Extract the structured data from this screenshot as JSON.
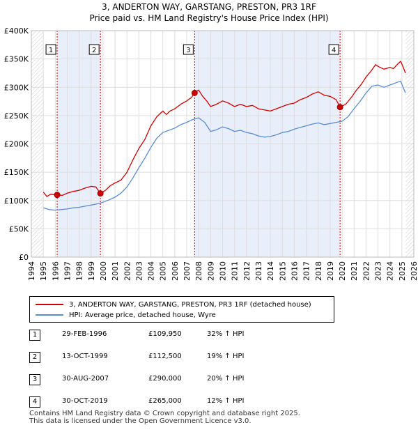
{
  "title_line1": "3, ANDERTON WAY, GARSTANG, PRESTON, PR3 1RF",
  "title_line2": "Price paid vs. HM Land Registry's House Price Index (HPI)",
  "chart_data": {
    "type": "line",
    "xlim": [
      1994,
      2026
    ],
    "ylim": [
      0,
      400000
    ],
    "x_ticks": [
      1994,
      1995,
      1996,
      1997,
      1998,
      1999,
      2000,
      2001,
      2002,
      2003,
      2004,
      2005,
      2006,
      2007,
      2008,
      2009,
      2010,
      2011,
      2012,
      2013,
      2014,
      2015,
      2016,
      2017,
      2018,
      2019,
      2020,
      2021,
      2022,
      2023,
      2024,
      2025,
      2026
    ],
    "y_ticks": [
      {
        "value": 0,
        "label": "£0"
      },
      {
        "value": 50000,
        "label": "£50K"
      },
      {
        "value": 100000,
        "label": "£100K"
      },
      {
        "value": 150000,
        "label": "£150K"
      },
      {
        "value": 200000,
        "label": "£200K"
      },
      {
        "value": 250000,
        "label": "£250K"
      },
      {
        "value": 300000,
        "label": "£300K"
      },
      {
        "value": 350000,
        "label": "£350K"
      },
      {
        "value": 400000,
        "label": "£400K"
      }
    ],
    "grid": true,
    "hatch_ranges": [
      [
        1994,
        1995.0
      ],
      [
        2025.3,
        2026
      ]
    ],
    "shade_ranges": [
      [
        1996.16,
        1999.78
      ],
      [
        2007.66,
        2019.83
      ]
    ],
    "series": [
      {
        "name": "3, ANDERTON WAY, GARSTANG, PRESTON, PR3 1RF (detached house)",
        "color": "#cc0000",
        "points": [
          [
            1995.0,
            115000
          ],
          [
            1995.3,
            107000
          ],
          [
            1995.6,
            111000
          ],
          [
            1996.16,
            109950
          ],
          [
            1996.6,
            109000
          ],
          [
            1997.0,
            113000
          ],
          [
            1997.5,
            116000
          ],
          [
            1998.0,
            118000
          ],
          [
            1998.5,
            122000
          ],
          [
            1999.0,
            125000
          ],
          [
            1999.4,
            124000
          ],
          [
            1999.78,
            112500
          ],
          [
            2000.2,
            118000
          ],
          [
            2000.6,
            126000
          ],
          [
            2001.0,
            131000
          ],
          [
            2001.5,
            136000
          ],
          [
            2002.0,
            150000
          ],
          [
            2002.5,
            172000
          ],
          [
            2003.0,
            192000
          ],
          [
            2003.5,
            208000
          ],
          [
            2004.0,
            232000
          ],
          [
            2004.5,
            248000
          ],
          [
            2005.0,
            258000
          ],
          [
            2005.3,
            252000
          ],
          [
            2005.6,
            258000
          ],
          [
            2006.0,
            262000
          ],
          [
            2006.5,
            270000
          ],
          [
            2007.0,
            276000
          ],
          [
            2007.4,
            282000
          ],
          [
            2007.66,
            290000
          ],
          [
            2008.0,
            295000
          ],
          [
            2008.3,
            285000
          ],
          [
            2008.7,
            275000
          ],
          [
            2009.0,
            266000
          ],
          [
            2009.5,
            270000
          ],
          [
            2010.0,
            276000
          ],
          [
            2010.5,
            272000
          ],
          [
            2011.0,
            266000
          ],
          [
            2011.5,
            270000
          ],
          [
            2012.0,
            266000
          ],
          [
            2012.5,
            268000
          ],
          [
            2013.0,
            262000
          ],
          [
            2013.5,
            260000
          ],
          [
            2014.0,
            258000
          ],
          [
            2014.5,
            262000
          ],
          [
            2015.0,
            266000
          ],
          [
            2015.5,
            270000
          ],
          [
            2016.0,
            272000
          ],
          [
            2016.5,
            278000
          ],
          [
            2017.0,
            282000
          ],
          [
            2017.5,
            288000
          ],
          [
            2018.0,
            292000
          ],
          [
            2018.5,
            286000
          ],
          [
            2019.0,
            284000
          ],
          [
            2019.5,
            278000
          ],
          [
            2019.83,
            265000
          ],
          [
            2020.3,
            270000
          ],
          [
            2020.8,
            283000
          ],
          [
            2021.2,
            295000
          ],
          [
            2021.6,
            305000
          ],
          [
            2022.0,
            318000
          ],
          [
            2022.4,
            328000
          ],
          [
            2022.8,
            340000
          ],
          [
            2023.0,
            337000
          ],
          [
            2023.5,
            332000
          ],
          [
            2024.0,
            335000
          ],
          [
            2024.3,
            333000
          ],
          [
            2024.6,
            340000
          ],
          [
            2024.9,
            346000
          ],
          [
            2025.1,
            336000
          ],
          [
            2025.3,
            325000
          ]
        ]
      },
      {
        "name": "HPI: Average price, detached house, Wyre",
        "color": "#5b8ccc",
        "points": [
          [
            1995.0,
            87000
          ],
          [
            1995.5,
            84000
          ],
          [
            1996.0,
            83000
          ],
          [
            1996.5,
            84000
          ],
          [
            1997.0,
            85000
          ],
          [
            1997.5,
            87000
          ],
          [
            1998.0,
            88000
          ],
          [
            1998.5,
            90000
          ],
          [
            1999.0,
            92000
          ],
          [
            1999.5,
            94000
          ],
          [
            2000.0,
            97000
          ],
          [
            2000.5,
            101000
          ],
          [
            2001.0,
            106000
          ],
          [
            2001.5,
            113000
          ],
          [
            2002.0,
            124000
          ],
          [
            2002.5,
            140000
          ],
          [
            2003.0,
            158000
          ],
          [
            2003.5,
            175000
          ],
          [
            2004.0,
            194000
          ],
          [
            2004.5,
            210000
          ],
          [
            2005.0,
            220000
          ],
          [
            2005.5,
            224000
          ],
          [
            2006.0,
            228000
          ],
          [
            2006.5,
            234000
          ],
          [
            2007.0,
            238000
          ],
          [
            2007.5,
            243000
          ],
          [
            2008.0,
            246000
          ],
          [
            2008.5,
            238000
          ],
          [
            2009.0,
            222000
          ],
          [
            2009.5,
            225000
          ],
          [
            2010.0,
            230000
          ],
          [
            2010.5,
            227000
          ],
          [
            2011.0,
            222000
          ],
          [
            2011.5,
            224000
          ],
          [
            2012.0,
            220000
          ],
          [
            2012.5,
            218000
          ],
          [
            2013.0,
            214000
          ],
          [
            2013.5,
            212000
          ],
          [
            2014.0,
            213000
          ],
          [
            2014.5,
            216000
          ],
          [
            2015.0,
            220000
          ],
          [
            2015.5,
            222000
          ],
          [
            2016.0,
            226000
          ],
          [
            2016.5,
            229000
          ],
          [
            2017.0,
            232000
          ],
          [
            2017.5,
            235000
          ],
          [
            2018.0,
            237000
          ],
          [
            2018.5,
            234000
          ],
          [
            2019.0,
            236000
          ],
          [
            2019.5,
            238000
          ],
          [
            2020.0,
            240000
          ],
          [
            2020.5,
            248000
          ],
          [
            2021.0,
            262000
          ],
          [
            2021.5,
            275000
          ],
          [
            2022.0,
            290000
          ],
          [
            2022.5,
            302000
          ],
          [
            2023.0,
            304000
          ],
          [
            2023.5,
            300000
          ],
          [
            2024.0,
            304000
          ],
          [
            2024.5,
            308000
          ],
          [
            2024.9,
            311000
          ],
          [
            2025.1,
            300000
          ],
          [
            2025.3,
            290000
          ]
        ]
      }
    ],
    "sales": [
      {
        "num": "1",
        "year": 1996.16,
        "price": 109950
      },
      {
        "num": "2",
        "year": 1999.78,
        "price": 112500
      },
      {
        "num": "3",
        "year": 2007.66,
        "price": 290000
      },
      {
        "num": "4",
        "year": 2019.83,
        "price": 265000
      }
    ]
  },
  "legend": {
    "property_label": "3, ANDERTON WAY, GARSTANG, PRESTON, PR3 1RF (detached house)",
    "hpi_label": "HPI: Average price, detached house, Wyre"
  },
  "transactions": [
    {
      "num": "1",
      "date": "29-FEB-1996",
      "price": "£109,950",
      "hpi": "32% ↑ HPI"
    },
    {
      "num": "2",
      "date": "13-OCT-1999",
      "price": "£112,500",
      "hpi": "19% ↑ HPI"
    },
    {
      "num": "3",
      "date": "30-AUG-2007",
      "price": "£290,000",
      "hpi": "20% ↑ HPI"
    },
    {
      "num": "4",
      "date": "30-OCT-2019",
      "price": "£265,000",
      "hpi": "12% ↑ HPI"
    }
  ],
  "footer": {
    "line1": "Contains HM Land Registry data © Crown copyright and database right 2025.",
    "line2": "This data is licensed under the Open Government Licence v3.0."
  },
  "colors": {
    "property": "#cc0000",
    "hpi": "#5b8ccc",
    "shade": "#e8eefa"
  }
}
